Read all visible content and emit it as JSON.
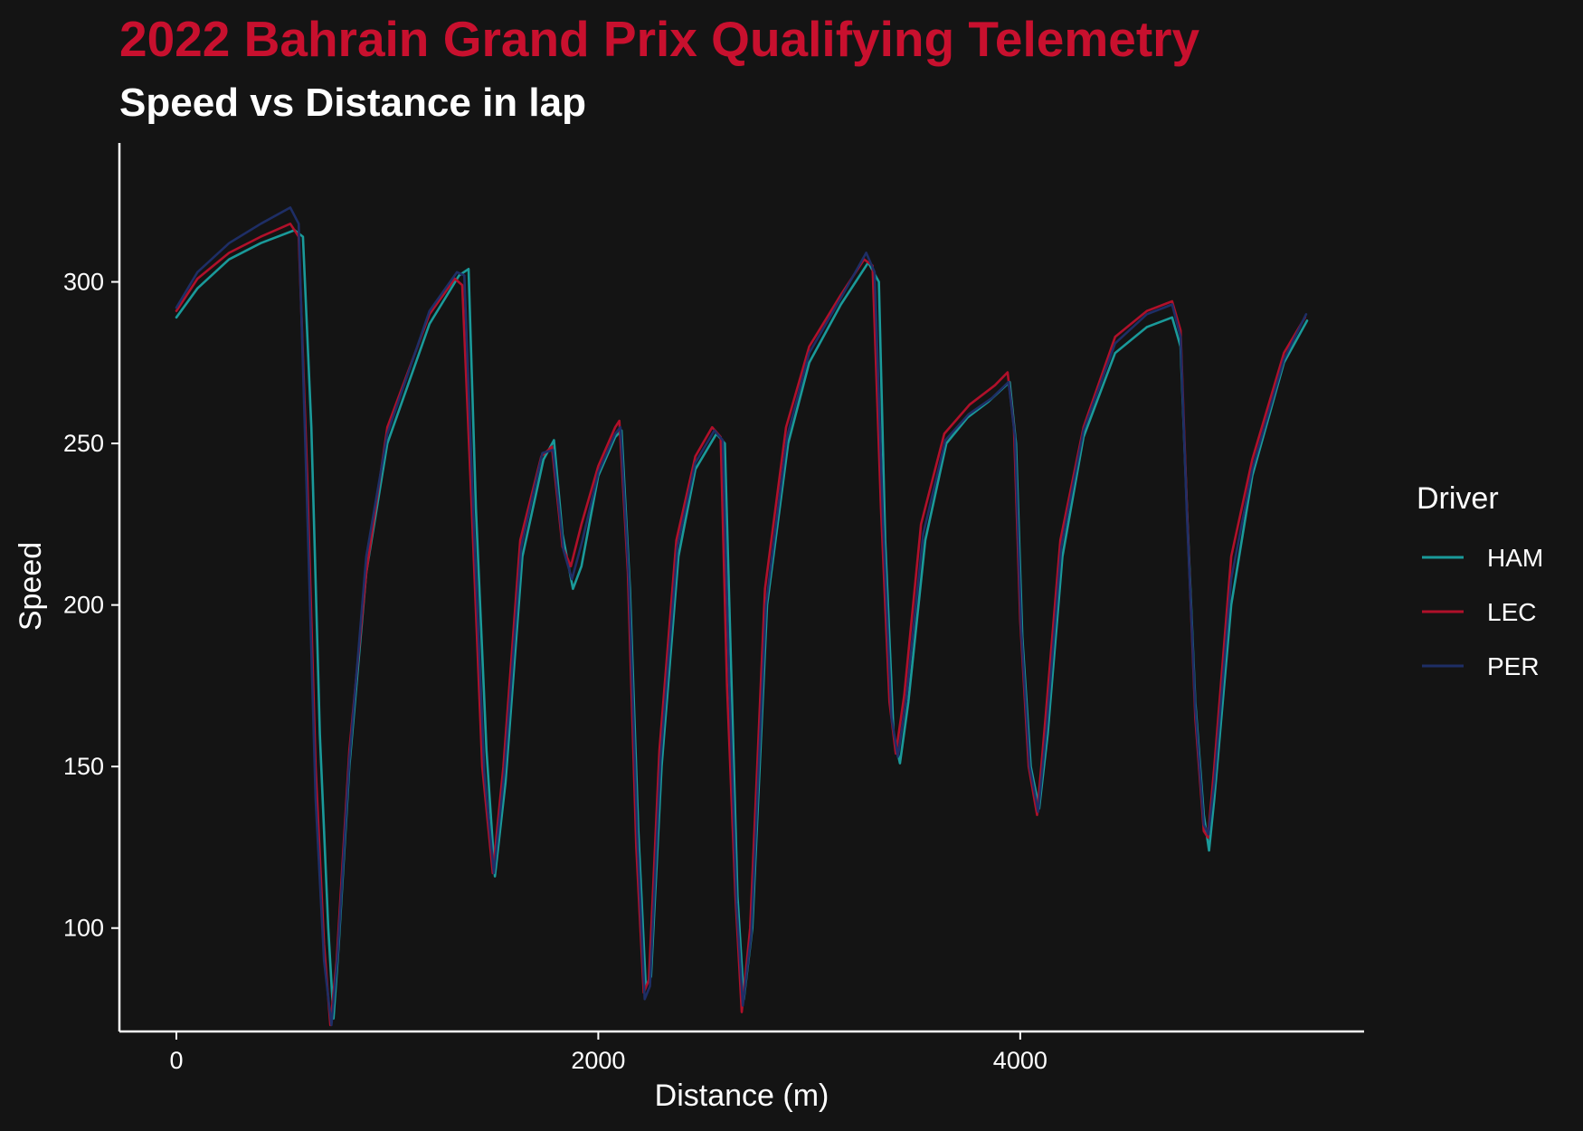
{
  "chart_data": {
    "type": "line",
    "title": "2022 Bahrain Grand Prix Qualifying Telemetry",
    "subtitle": "Speed vs Distance in lap",
    "xlabel": "Distance (m)",
    "ylabel": "Speed",
    "xlim": [
      -270,
      5630
    ],
    "ylim": [
      68,
      343
    ],
    "xticks": [
      0,
      2000,
      4000
    ],
    "yticks": [
      100,
      150,
      200,
      250,
      300
    ],
    "grid": false,
    "legend": {
      "title": "Driver",
      "position": "right"
    },
    "colors": {
      "title": "#c8102e",
      "background": "#141414",
      "axis": "#ffffff"
    },
    "series": [
      {
        "name": "HAM",
        "color": "#1a9a9a",
        "points": [
          [
            0,
            289
          ],
          [
            100,
            298
          ],
          [
            250,
            307
          ],
          [
            400,
            312
          ],
          [
            560,
            316
          ],
          [
            600,
            314
          ],
          [
            640,
            255
          ],
          [
            680,
            160
          ],
          [
            720,
            100
          ],
          [
            745,
            72
          ],
          [
            770,
            95
          ],
          [
            820,
            150
          ],
          [
            900,
            210
          ],
          [
            1000,
            250
          ],
          [
            1200,
            287
          ],
          [
            1340,
            302
          ],
          [
            1385,
            304
          ],
          [
            1420,
            230
          ],
          [
            1470,
            155
          ],
          [
            1510,
            116
          ],
          [
            1560,
            145
          ],
          [
            1640,
            215
          ],
          [
            1740,
            245
          ],
          [
            1790,
            251
          ],
          [
            1830,
            222
          ],
          [
            1880,
            205
          ],
          [
            1920,
            212
          ],
          [
            2000,
            240
          ],
          [
            2080,
            252
          ],
          [
            2110,
            254
          ],
          [
            2150,
            205
          ],
          [
            2190,
            130
          ],
          [
            2225,
            82
          ],
          [
            2250,
            85
          ],
          [
            2300,
            150
          ],
          [
            2380,
            215
          ],
          [
            2460,
            242
          ],
          [
            2560,
            253
          ],
          [
            2600,
            250
          ],
          [
            2630,
            180
          ],
          [
            2660,
            110
          ],
          [
            2690,
            78
          ],
          [
            2730,
            100
          ],
          [
            2800,
            200
          ],
          [
            2900,
            250
          ],
          [
            3000,
            275
          ],
          [
            3150,
            293
          ],
          [
            3280,
            306
          ],
          [
            3330,
            300
          ],
          [
            3360,
            220
          ],
          [
            3400,
            160
          ],
          [
            3430,
            151
          ],
          [
            3470,
            170
          ],
          [
            3550,
            220
          ],
          [
            3650,
            250
          ],
          [
            3750,
            258
          ],
          [
            3850,
            263
          ],
          [
            3950,
            269
          ],
          [
            3980,
            250
          ],
          [
            4010,
            190
          ],
          [
            4050,
            150
          ],
          [
            4090,
            137
          ],
          [
            4130,
            160
          ],
          [
            4200,
            215
          ],
          [
            4300,
            252
          ],
          [
            4450,
            278
          ],
          [
            4600,
            286
          ],
          [
            4720,
            289
          ],
          [
            4760,
            280
          ],
          [
            4790,
            230
          ],
          [
            4830,
            170
          ],
          [
            4870,
            135
          ],
          [
            4895,
            124
          ],
          [
            4920,
            140
          ],
          [
            5000,
            200
          ],
          [
            5100,
            240
          ],
          [
            5250,
            275
          ],
          [
            5360,
            288
          ]
        ]
      },
      {
        "name": "LEC",
        "color": "#b0102a",
        "points": [
          [
            0,
            291
          ],
          [
            100,
            301
          ],
          [
            250,
            309
          ],
          [
            400,
            314
          ],
          [
            540,
            318
          ],
          [
            580,
            314
          ],
          [
            620,
            240
          ],
          [
            660,
            150
          ],
          [
            700,
            95
          ],
          [
            730,
            70
          ],
          [
            760,
            90
          ],
          [
            820,
            155
          ],
          [
            900,
            210
          ],
          [
            1000,
            255
          ],
          [
            1200,
            290
          ],
          [
            1320,
            301
          ],
          [
            1355,
            299
          ],
          [
            1400,
            230
          ],
          [
            1450,
            150
          ],
          [
            1500,
            117
          ],
          [
            1550,
            150
          ],
          [
            1630,
            220
          ],
          [
            1730,
            246
          ],
          [
            1780,
            249
          ],
          [
            1830,
            218
          ],
          [
            1870,
            212
          ],
          [
            1920,
            225
          ],
          [
            2000,
            243
          ],
          [
            2080,
            255
          ],
          [
            2100,
            257
          ],
          [
            2140,
            210
          ],
          [
            2180,
            125
          ],
          [
            2215,
            80
          ],
          [
            2240,
            84
          ],
          [
            2290,
            155
          ],
          [
            2370,
            220
          ],
          [
            2460,
            246
          ],
          [
            2540,
            255
          ],
          [
            2580,
            252
          ],
          [
            2610,
            175
          ],
          [
            2650,
            110
          ],
          [
            2680,
            74
          ],
          [
            2720,
            100
          ],
          [
            2790,
            205
          ],
          [
            2890,
            255
          ],
          [
            3000,
            280
          ],
          [
            3150,
            296
          ],
          [
            3260,
            307
          ],
          [
            3300,
            305
          ],
          [
            3340,
            230
          ],
          [
            3380,
            170
          ],
          [
            3410,
            154
          ],
          [
            3450,
            172
          ],
          [
            3530,
            225
          ],
          [
            3640,
            253
          ],
          [
            3760,
            262
          ],
          [
            3880,
            268
          ],
          [
            3940,
            272
          ],
          [
            3970,
            255
          ],
          [
            4000,
            195
          ],
          [
            4040,
            150
          ],
          [
            4080,
            135
          ],
          [
            4120,
            165
          ],
          [
            4190,
            220
          ],
          [
            4300,
            255
          ],
          [
            4450,
            283
          ],
          [
            4600,
            291
          ],
          [
            4720,
            294
          ],
          [
            4760,
            285
          ],
          [
            4790,
            230
          ],
          [
            4830,
            165
          ],
          [
            4870,
            130
          ],
          [
            4890,
            128
          ],
          [
            4920,
            150
          ],
          [
            5000,
            215
          ],
          [
            5100,
            245
          ],
          [
            5250,
            278
          ],
          [
            5350,
            289
          ]
        ]
      },
      {
        "name": "PER",
        "color": "#1e2e66",
        "points": [
          [
            0,
            292
          ],
          [
            100,
            303
          ],
          [
            250,
            312
          ],
          [
            400,
            318
          ],
          [
            540,
            323
          ],
          [
            580,
            318
          ],
          [
            620,
            230
          ],
          [
            660,
            140
          ],
          [
            700,
            90
          ],
          [
            735,
            70
          ],
          [
            765,
            92
          ],
          [
            820,
            152
          ],
          [
            900,
            215
          ],
          [
            1000,
            253
          ],
          [
            1200,
            291
          ],
          [
            1330,
            303
          ],
          [
            1365,
            302
          ],
          [
            1410,
            225
          ],
          [
            1460,
            148
          ],
          [
            1505,
            117
          ],
          [
            1555,
            148
          ],
          [
            1635,
            218
          ],
          [
            1735,
            247
          ],
          [
            1785,
            248
          ],
          [
            1835,
            217
          ],
          [
            1875,
            208
          ],
          [
            1925,
            220
          ],
          [
            2000,
            241
          ],
          [
            2080,
            253
          ],
          [
            2105,
            255
          ],
          [
            2145,
            208
          ],
          [
            2185,
            128
          ],
          [
            2220,
            78
          ],
          [
            2245,
            82
          ],
          [
            2295,
            152
          ],
          [
            2375,
            218
          ],
          [
            2460,
            244
          ],
          [
            2550,
            254
          ],
          [
            2590,
            251
          ],
          [
            2620,
            178
          ],
          [
            2655,
            108
          ],
          [
            2685,
            76
          ],
          [
            2725,
            98
          ],
          [
            2795,
            200
          ],
          [
            2895,
            252
          ],
          [
            3000,
            278
          ],
          [
            3150,
            295
          ],
          [
            3270,
            309
          ],
          [
            3310,
            303
          ],
          [
            3350,
            225
          ],
          [
            3390,
            165
          ],
          [
            3420,
            153
          ],
          [
            3460,
            171
          ],
          [
            3540,
            222
          ],
          [
            3645,
            251
          ],
          [
            3755,
            259
          ],
          [
            3865,
            264
          ],
          [
            3945,
            269
          ],
          [
            3975,
            252
          ],
          [
            4005,
            192
          ],
          [
            4045,
            150
          ],
          [
            4085,
            136
          ],
          [
            4125,
            162
          ],
          [
            4195,
            218
          ],
          [
            4300,
            254
          ],
          [
            4450,
            281
          ],
          [
            4600,
            290
          ],
          [
            4720,
            293
          ],
          [
            4760,
            283
          ],
          [
            4790,
            228
          ],
          [
            4830,
            168
          ],
          [
            4870,
            132
          ],
          [
            4892,
            129
          ],
          [
            4920,
            145
          ],
          [
            5000,
            208
          ],
          [
            5100,
            242
          ],
          [
            5250,
            276
          ],
          [
            5355,
            290
          ]
        ]
      }
    ]
  }
}
